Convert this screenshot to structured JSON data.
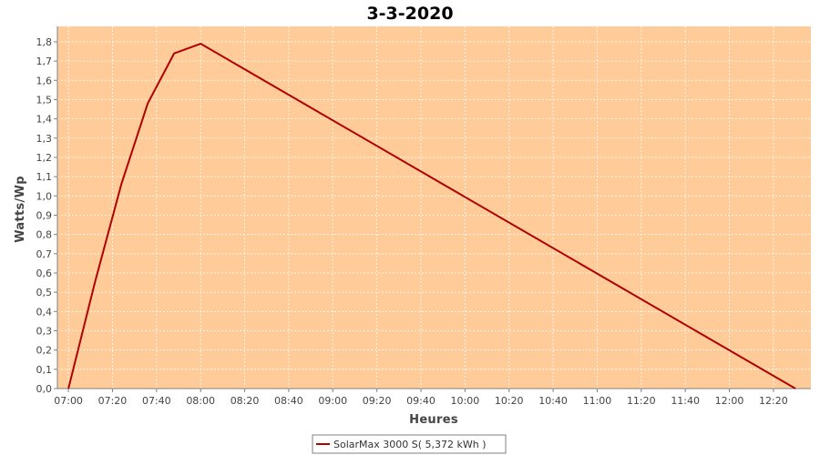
{
  "chart_data": {
    "type": "line",
    "title": "3-3-2020",
    "xlabel": "Heures",
    "ylabel": "Watts/Wp",
    "x_ticks": [
      "07:00",
      "07:20",
      "07:40",
      "08:00",
      "08:20",
      "08:40",
      "09:00",
      "09:20",
      "09:40",
      "10:00",
      "10:20",
      "10:40",
      "11:00",
      "11:20",
      "11:40",
      "12:00",
      "12:20"
    ],
    "y_ticks": [
      "0,0",
      "0,1",
      "0,2",
      "0,3",
      "0,4",
      "0,5",
      "0,6",
      "0,7",
      "0,8",
      "0,9",
      "1,0",
      "1,1",
      "1,2",
      "1,3",
      "1,4",
      "1,5",
      "1,6",
      "1,7",
      "1,8"
    ],
    "xlim": [
      "06:55",
      "12:37"
    ],
    "ylim": [
      0,
      1.88
    ],
    "grid": true,
    "legend_position": "bottom",
    "series": [
      {
        "name": "SolarMax 3000 S( 5,372 kWh )",
        "color": "#b00000",
        "points": [
          {
            "x": "07:00",
            "y": 0.0
          },
          {
            "x": "07:12",
            "y": 0.55
          },
          {
            "x": "07:24",
            "y": 1.06
          },
          {
            "x": "07:36",
            "y": 1.48
          },
          {
            "x": "07:48",
            "y": 1.74
          },
          {
            "x": "08:00",
            "y": 1.79
          },
          {
            "x": "12:30",
            "y": 0.0
          }
        ]
      }
    ]
  },
  "colors": {
    "plot_background": "#ffcc99",
    "grid": "#ffffff",
    "axis": "#808080"
  }
}
